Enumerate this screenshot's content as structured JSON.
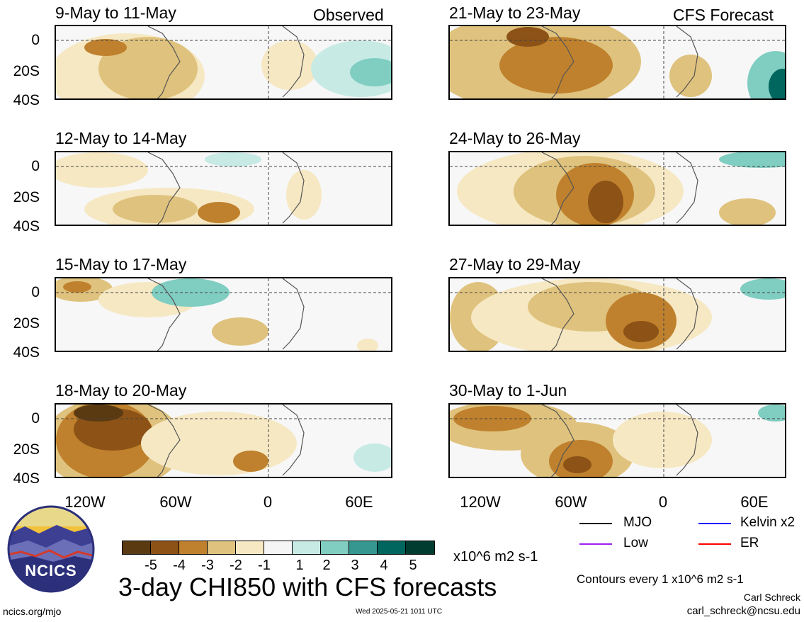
{
  "panels": [
    {
      "title": "9-May to 11-May",
      "tag": "Observed"
    },
    {
      "title": "21-May to 23-May",
      "tag": "CFS Forecast"
    },
    {
      "title": "12-May to 14-May",
      "tag": ""
    },
    {
      "title": "24-May to 26-May",
      "tag": ""
    },
    {
      "title": "15-May to 17-May",
      "tag": ""
    },
    {
      "title": "27-May to 29-May",
      "tag": ""
    },
    {
      "title": "18-May to 20-May",
      "tag": ""
    },
    {
      "title": "30-May to 1-Jun",
      "tag": ""
    }
  ],
  "lat_labels": [
    "0",
    "20S",
    "40S"
  ],
  "lon_labels": [
    "120W",
    "60W",
    "0",
    "60E"
  ],
  "colorbar": {
    "colors": [
      "#5a3a11",
      "#8c5216",
      "#bf812d",
      "#dfc27d",
      "#f6e8c3",
      "#f5f5f5",
      "#c7eae5",
      "#80cdc1",
      "#35978f",
      "#01665e",
      "#003c30"
    ],
    "ticks": [
      "-5",
      "-4",
      "-3",
      "-2",
      "-1",
      "1",
      "2",
      "3",
      "4",
      "5"
    ],
    "units": "x10^6 m2 s-1"
  },
  "main_title": "3-day CHI850 with CFS forecasts",
  "legend": [
    {
      "label": "MJO",
      "color": "#000000"
    },
    {
      "label": "Kelvin x2",
      "color": "#0000ff"
    },
    {
      "label": "Low",
      "color": "#a020f0"
    },
    {
      "label": "ER",
      "color": "#ff0000"
    }
  ],
  "contour_note": "Contours every 1 x10^6 m2 s-1",
  "author": "Carl Schreck",
  "email": "carl_schreck@ncsu.edu",
  "url": "ncics.org/mjo",
  "timestamp": "Wed 2025-05-21 1011 UTC",
  "logo_text": "NCICS"
}
